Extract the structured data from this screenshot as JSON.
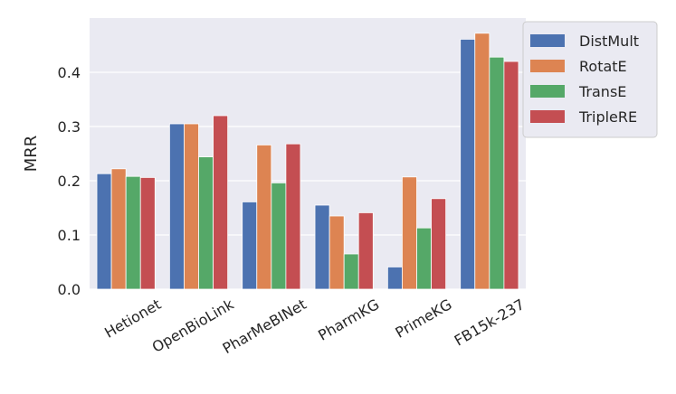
{
  "chart_data": {
    "type": "bar",
    "title": "",
    "xlabel": "",
    "ylabel": "MRR",
    "ylim": [
      0,
      0.5
    ],
    "yticks": [
      "0.0",
      "0.1",
      "0.2",
      "0.3",
      "0.4"
    ],
    "grid": true,
    "legend_position": "outside-top-right",
    "categories": [
      "Hetionet",
      "OpenBioLink",
      "PharMeBINet",
      "PharmKG",
      "PrimeKG",
      "FB15k-237"
    ],
    "series": [
      {
        "name": "DistMult",
        "color": "#4c72b0",
        "values": [
          0.213,
          0.305,
          0.161,
          0.155,
          0.041,
          0.461
        ]
      },
      {
        "name": "RotatE",
        "color": "#dd8452",
        "values": [
          0.222,
          0.305,
          0.266,
          0.135,
          0.207,
          0.472
        ]
      },
      {
        "name": "TransE",
        "color": "#55a868",
        "values": [
          0.208,
          0.244,
          0.196,
          0.065,
          0.113,
          0.428
        ]
      },
      {
        "name": "TripleRE",
        "color": "#c44e52",
        "values": [
          0.206,
          0.32,
          0.268,
          0.141,
          0.167,
          0.42
        ]
      }
    ]
  },
  "colors": {
    "plot_background": "#eaeaf2",
    "grid": "#ffffff"
  }
}
